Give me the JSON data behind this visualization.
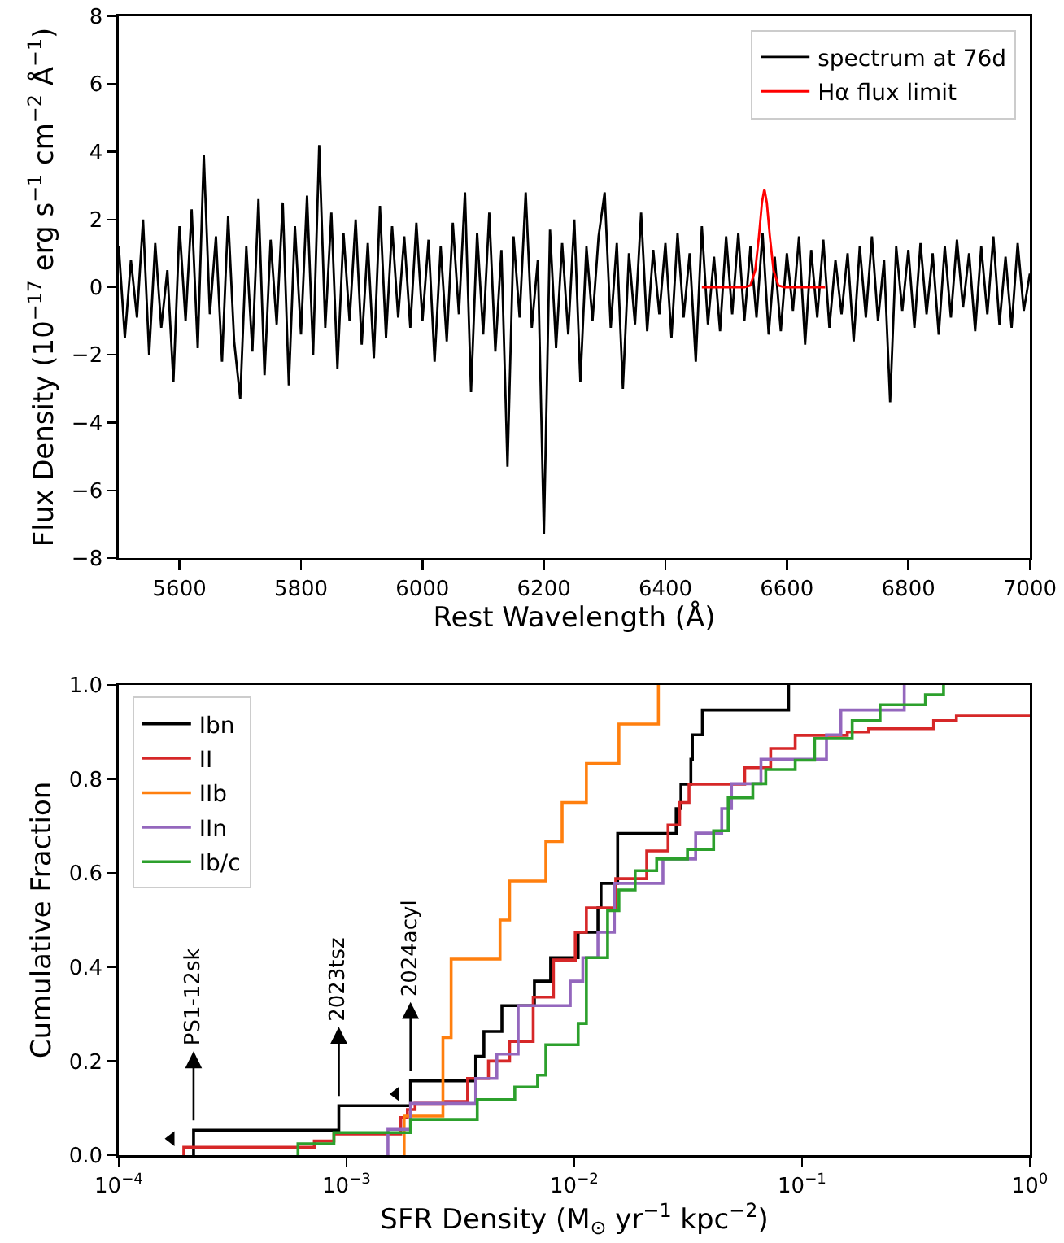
{
  "chart_data": [
    {
      "type": "line",
      "xlabel": "Rest Wavelength (Å)",
      "ylabel": "Flux Density (10$^{−17}$ erg s$^{−1}$ cm$^{−2}$ Å$^{−1}$)",
      "xlim": [
        5500,
        7000
      ],
      "ylim": [
        -8,
        8
      ],
      "xticks": [
        5600,
        5800,
        6000,
        6200,
        6400,
        6600,
        6800,
        7000
      ],
      "yticks": [
        {
          "value": -8,
          "label": "−8"
        },
        {
          "value": -6,
          "label": "−6"
        },
        {
          "value": -4,
          "label": "−4"
        },
        {
          "value": -2,
          "label": "−2"
        },
        0,
        2,
        4,
        6,
        8
      ],
      "legend": "top right",
      "series": [
        {
          "name": "spectrum at 76d",
          "color": "#000000",
          "x": [
            5500,
            5510,
            5520,
            5530,
            5540,
            5550,
            5560,
            5570,
            5580,
            5590,
            5600,
            5610,
            5620,
            5630,
            5640,
            5650,
            5660,
            5670,
            5680,
            5690,
            5700,
            5710,
            5720,
            5730,
            5740,
            5750,
            5760,
            5770,
            5780,
            5790,
            5800,
            5810,
            5820,
            5830,
            5840,
            5850,
            5860,
            5870,
            5880,
            5890,
            5900,
            5910,
            5920,
            5930,
            5940,
            5950,
            5960,
            5970,
            5980,
            5990,
            6000,
            6010,
            6020,
            6030,
            6040,
            6050,
            6060,
            6070,
            6080,
            6090,
            6100,
            6110,
            6120,
            6130,
            6140,
            6150,
            6160,
            6170,
            6180,
            6190,
            6200,
            6210,
            6220,
            6230,
            6240,
            6250,
            6260,
            6270,
            6280,
            6290,
            6300,
            6310,
            6320,
            6330,
            6340,
            6350,
            6360,
            6370,
            6380,
            6390,
            6400,
            6410,
            6420,
            6430,
            6440,
            6450,
            6460,
            6470,
            6480,
            6490,
            6500,
            6510,
            6520,
            6530,
            6540,
            6550,
            6560,
            6570,
            6580,
            6590,
            6600,
            6610,
            6620,
            6630,
            6640,
            6650,
            6660,
            6670,
            6680,
            6690,
            6700,
            6710,
            6720,
            6730,
            6740,
            6750,
            6760,
            6770,
            6780,
            6790,
            6800,
            6810,
            6820,
            6830,
            6840,
            6850,
            6860,
            6870,
            6880,
            6890,
            6900,
            6910,
            6920,
            6930,
            6940,
            6950,
            6960,
            6970,
            6980,
            6990,
            7000
          ],
          "values": [
            1.2,
            -1.5,
            0.8,
            -0.9,
            2.0,
            -2.0,
            1.3,
            -1.2,
            0.5,
            -2.8,
            1.8,
            -1.0,
            2.3,
            -1.8,
            3.9,
            -0.8,
            1.5,
            -2.2,
            2.1,
            -1.6,
            -3.3,
            1.2,
            -1.9,
            2.6,
            -2.6,
            1.4,
            -1.1,
            2.5,
            -2.9,
            1.8,
            -1.4,
            2.7,
            -2.0,
            4.2,
            -1.2,
            2.2,
            -2.4,
            1.6,
            -1.0,
            2.0,
            -1.7,
            1.3,
            -2.1,
            2.4,
            -1.5,
            1.8,
            -0.9,
            1.5,
            -1.2,
            1.9,
            -1.0,
            1.4,
            -2.2,
            1.2,
            -1.6,
            1.9,
            -0.8,
            2.8,
            -3.1,
            1.6,
            -1.4,
            2.2,
            -1.9,
            1.1,
            -5.3,
            1.5,
            -0.9,
            2.8,
            -1.2,
            0.8,
            -7.3,
            1.7,
            -1.8,
            1.3,
            -1.4,
            2.0,
            -2.8,
            1.2,
            -1.0,
            1.5,
            2.8,
            -1.2,
            1.3,
            -3.0,
            1.0,
            -1.1,
            2.2,
            -1.3,
            1.1,
            -0.8,
            1.3,
            -1.5,
            1.6,
            -0.9,
            1.0,
            -2.2,
            1.8,
            -1.1,
            0.9,
            -1.3,
            1.5,
            -0.8,
            1.6,
            -1.0,
            1.2,
            -0.9,
            1.6,
            -1.4,
            0.9,
            -1.3,
            1.0,
            -0.7,
            1.5,
            -1.7,
            1.1,
            -0.9,
            1.4,
            -1.2,
            0.8,
            -0.8,
            1.0,
            -1.6,
            1.2,
            -0.9,
            1.5,
            -1.0,
            0.8,
            -3.4,
            1.2,
            -0.7,
            1.1,
            -1.2,
            1.3,
            -0.8,
            1.0,
            -1.4,
            1.2,
            -0.9,
            1.4,
            -0.6,
            1.0,
            -1.3,
            1.2,
            -0.8,
            1.5,
            -1.1,
            0.9,
            -1.2,
            1.3,
            -0.7,
            0.4
          ]
        },
        {
          "name": "Hα flux limit",
          "color": "#ff0000",
          "x": [
            6460,
            6530,
            6540,
            6548,
            6554,
            6559,
            6563,
            6567,
            6572,
            6578,
            6586,
            6596,
            6663
          ],
          "values": [
            0,
            0,
            0.05,
            0.5,
            1.5,
            2.5,
            2.9,
            2.5,
            1.5,
            0.5,
            0.05,
            0,
            0
          ]
        }
      ]
    },
    {
      "type": "step",
      "xlabel": "SFR Density (M$_{⊙}$ yr$^{−1}$ kpc$^{−2}$)",
      "ylabel": "Cumulative Fraction",
      "log": "x",
      "xlim": [
        0.0001,
        1
      ],
      "ylim": [
        0,
        1
      ],
      "xticks": [
        {
          "value": 0.0001,
          "label": "10$^{−4}$"
        },
        {
          "value": 0.001,
          "label": "10$^{−3}$"
        },
        {
          "value": 0.01,
          "label": "10$^{−2}$"
        },
        {
          "value": 0.1,
          "label": "10$^{−1}$"
        },
        {
          "value": 1,
          "label": "10$^{0}$"
        }
      ],
      "yticks": [
        {
          "value": 0,
          "label": "0.0"
        },
        {
          "value": 0.2,
          "label": "0.2"
        },
        {
          "value": 0.4,
          "label": "0.4"
        },
        {
          "value": 0.6,
          "label": "0.6"
        },
        {
          "value": 0.8,
          "label": "0.8"
        },
        {
          "value": 1,
          "label": "1.0"
        }
      ],
      "legend": "top left",
      "series": [
        {
          "name": "Ibn",
          "color": "#000000",
          "x": [
            0.000213,
            0.000213,
            0.000925,
            0.00191,
            0.00369,
            0.00401,
            0.00481,
            0.00668,
            0.00787,
            0.0104,
            0.0127,
            0.0131,
            0.0155,
            0.028,
            0.0294,
            0.0325,
            0.033,
            0.0365,
            0.0873
          ],
          "values": [
            0,
            0.053,
            0.105,
            0.158,
            0.21,
            0.263,
            0.318,
            0.37,
            0.42,
            0.474,
            0.526,
            0.578,
            0.684,
            0.737,
            0.789,
            0.842,
            0.894,
            0.947,
            1
          ]
        },
        {
          "name": "II",
          "color": "#d62728",
          "x": [
            0.000193,
            0.000193,
            0.000722,
            0.00088,
            0.00173,
            0.00185,
            0.002,
            0.0027,
            0.0034,
            0.0042,
            0.0052,
            0.0066,
            0.0081,
            0.0101,
            0.0113,
            0.0152,
            0.0208,
            0.0258,
            0.029,
            0.0319,
            0.056,
            0.0728,
            0.0933,
            0.158,
            0.196,
            0.378,
            0.476,
            1
          ],
          "values": [
            0,
            0.017,
            0.03,
            0.045,
            0.08,
            0.097,
            0.11,
            0.114,
            0.163,
            0.2,
            0.242,
            0.336,
            0.415,
            0.474,
            0.526,
            0.588,
            0.647,
            0.702,
            0.75,
            0.789,
            0.824,
            0.865,
            0.893,
            0.9,
            0.907,
            0.924,
            0.934,
            0.934
          ]
        },
        {
          "name": "IIb",
          "color": "#ff7f0e",
          "x": [
            0.00179,
            0.00179,
            0.00265,
            0.00288,
            0.00472,
            0.0052,
            0.0075,
            0.00884,
            0.0113,
            0.0157,
            0.0234
          ],
          "values": [
            0,
            0.083,
            0.25,
            0.417,
            0.5,
            0.583,
            0.667,
            0.75,
            0.833,
            0.917,
            1
          ]
        },
        {
          "name": "IIn",
          "color": "#9467bd",
          "x": [
            0.00152,
            0.00152,
            0.00191,
            0.00369,
            0.00457,
            0.00567,
            0.0096,
            0.0109,
            0.0127,
            0.015,
            0.0245,
            0.0341,
            0.0444,
            0.049,
            0.066,
            0.128,
            0.148,
            0.281
          ],
          "values": [
            0,
            0.055,
            0.11,
            0.163,
            0.215,
            0.318,
            0.37,
            0.42,
            0.474,
            0.578,
            0.63,
            0.685,
            0.737,
            0.79,
            0.842,
            0.894,
            0.947,
            1
          ]
        },
        {
          "type": "scatter",
          "marker": "triangle",
          "color": "#000000",
          "x": [
            0.00017,
            0.00165
          ],
          "values": [
            0.035,
            0.13
          ]
        },
        {
          "name": "Ib/c",
          "color": "#2ca02c",
          "x": [
            0.000612,
            0.000612,
            0.00088,
            0.00191,
            0.00375,
            0.00548,
            0.0069,
            0.0075,
            0.0104,
            0.0113,
            0.014,
            0.0157,
            0.0185,
            0.023,
            0.0314,
            0.0409,
            0.0474,
            0.0608,
            0.0693,
            0.0933,
            0.1135,
            0.166,
            0.22,
            0.348,
            0.418
          ],
          "values": [
            0,
            0.024,
            0.048,
            0.076,
            0.118,
            0.145,
            0.17,
            0.235,
            0.28,
            0.42,
            0.52,
            0.564,
            0.605,
            0.63,
            0.65,
            0.69,
            0.76,
            0.79,
            0.82,
            0.84,
            0.886,
            0.924,
            0.958,
            0.979,
            1
          ]
        }
      ],
      "annotations": [
        {
          "text": "PS1-12sk",
          "x": 0.000213,
          "y": 0.053
        },
        {
          "text": "2023tsz",
          "x": 0.000925,
          "y": 0.105
        },
        {
          "text": "2024acyl",
          "x": 0.00191,
          "y": 0.158
        }
      ]
    }
  ]
}
